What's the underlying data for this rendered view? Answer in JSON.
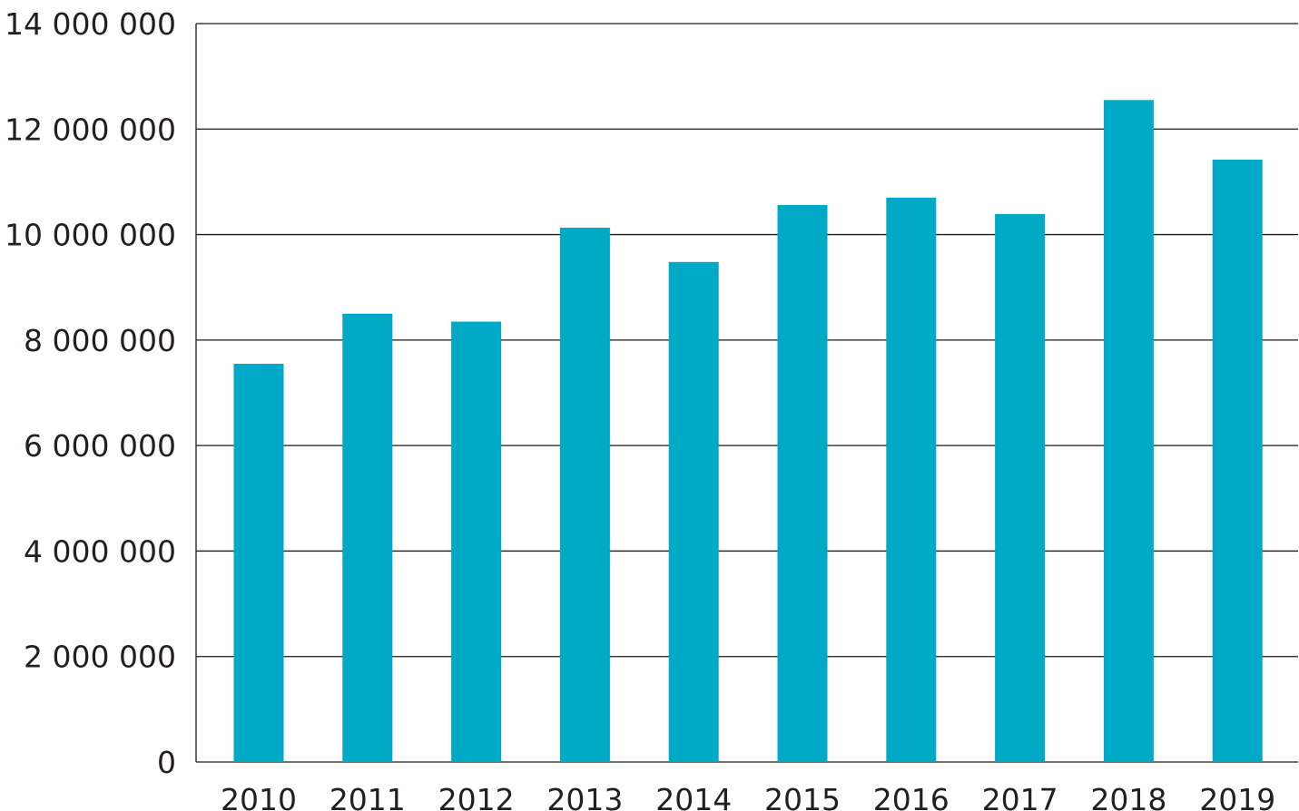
{
  "chart_data": {
    "type": "bar",
    "categories": [
      "2010",
      "2011",
      "2012",
      "2013",
      "2014",
      "2015",
      "2016",
      "2017",
      "2018",
      "2019"
    ],
    "values": [
      7550000,
      8500000,
      8350000,
      10130000,
      9480000,
      10560000,
      10700000,
      10390000,
      12550000,
      11420000
    ],
    "ylim": [
      0,
      14000000
    ],
    "yticks": [
      0,
      2000000,
      4000000,
      6000000,
      8000000,
      10000000,
      12000000,
      14000000
    ],
    "ytick_labels": [
      "0",
      "2 000 000",
      "4 000 000",
      "6 000 000",
      "8 000 000",
      "10 000 000",
      "12 000 000",
      "14 000 000"
    ],
    "title": "",
    "xlabel": "",
    "ylabel": "",
    "grid": true,
    "bar_color": "#00a9c6",
    "grid_color": "#1a1a1a",
    "text_color": "#231f20"
  }
}
